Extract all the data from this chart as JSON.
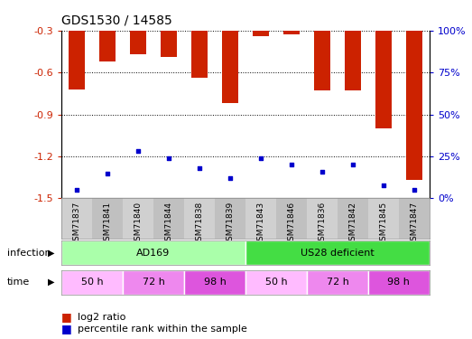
{
  "title": "GDS1530 / 14585",
  "samples": [
    "GSM71837",
    "GSM71841",
    "GSM71840",
    "GSM71844",
    "GSM71838",
    "GSM71839",
    "GSM71843",
    "GSM71846",
    "GSM71836",
    "GSM71842",
    "GSM71845",
    "GSM71847"
  ],
  "log2_ratio": [
    -0.72,
    -0.52,
    -0.47,
    -0.49,
    -0.64,
    -0.82,
    -0.34,
    -0.33,
    -0.73,
    -0.73,
    -1.0,
    -1.37
  ],
  "percentile_rank": [
    5,
    15,
    28,
    24,
    18,
    12,
    24,
    20,
    16,
    20,
    8,
    5
  ],
  "bar_color": "#cc2200",
  "dot_color": "#0000cc",
  "ylim_left": [
    -1.5,
    -0.3
  ],
  "ylim_right": [
    0,
    100
  ],
  "yticks_left": [
    -1.5,
    -1.2,
    -0.9,
    -0.6,
    -0.3
  ],
  "yticks_right": [
    0,
    25,
    50,
    75,
    100
  ],
  "infection_labels": [
    {
      "label": "AD169",
      "span": [
        0,
        5
      ],
      "color": "#aaffaa"
    },
    {
      "label": "US28 deficient",
      "span": [
        6,
        11
      ],
      "color": "#44dd44"
    }
  ],
  "time_groups": [
    {
      "label": "50 h",
      "span": [
        0,
        1
      ],
      "color": "#ffbbff"
    },
    {
      "label": "72 h",
      "span": [
        2,
        3
      ],
      "color": "#ee88ee"
    },
    {
      "label": "98 h",
      "span": [
        4,
        5
      ],
      "color": "#dd55dd"
    },
    {
      "label": "50 h",
      "span": [
        6,
        7
      ],
      "color": "#ffbbff"
    },
    {
      "label": "72 h",
      "span": [
        8,
        9
      ],
      "color": "#ee88ee"
    },
    {
      "label": "98 h",
      "span": [
        10,
        11
      ],
      "color": "#dd55dd"
    }
  ],
  "xlabel_infection": "infection",
  "xlabel_time": "time",
  "legend_items": [
    {
      "label": "log2 ratio",
      "color": "#cc2200"
    },
    {
      "label": "percentile rank within the sample",
      "color": "#0000cc"
    }
  ]
}
